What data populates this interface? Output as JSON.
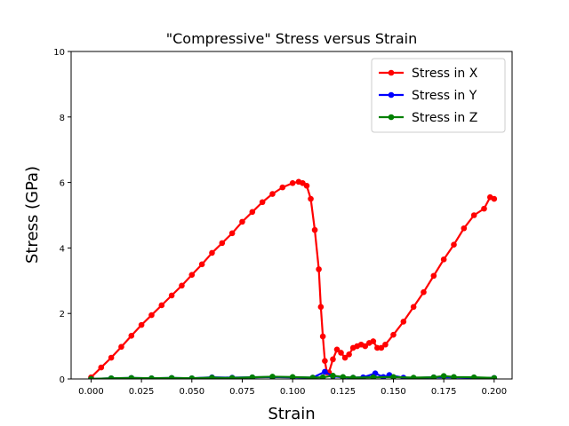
{
  "chart_data": {
    "type": "line",
    "title": "\"Compressive\" Stress versus Strain",
    "xlabel": "Strain",
    "ylabel": "Stress (GPa)",
    "xlim": [
      -0.0099,
      0.2089
    ],
    "ylim": [
      0,
      10
    ],
    "xticks": [
      "0.000",
      "0.025",
      "0.050",
      "0.075",
      "0.100",
      "0.125",
      "0.150",
      "0.175",
      "0.200"
    ],
    "yticks": [
      "0",
      "2",
      "4",
      "6",
      "8",
      "10"
    ],
    "grid": false,
    "legend_position": "top-right",
    "series": [
      {
        "name": "Stress in X",
        "color": "#ff0000",
        "x": [
          0.0,
          0.005,
          0.01,
          0.015,
          0.02,
          0.025,
          0.03,
          0.035,
          0.04,
          0.045,
          0.05,
          0.055,
          0.06,
          0.065,
          0.07,
          0.075,
          0.08,
          0.085,
          0.09,
          0.095,
          0.1,
          0.103,
          0.105,
          0.107,
          0.109,
          0.111,
          0.113,
          0.114,
          0.115,
          0.116,
          0.117,
          0.118,
          0.12,
          0.122,
          0.124,
          0.126,
          0.128,
          0.13,
          0.132,
          0.134,
          0.136,
          0.138,
          0.14,
          0.142,
          0.144,
          0.146,
          0.15,
          0.155,
          0.16,
          0.165,
          0.17,
          0.175,
          0.18,
          0.185,
          0.19,
          0.195,
          0.198,
          0.2
        ],
        "y": [
          0.05,
          0.35,
          0.65,
          0.98,
          1.32,
          1.65,
          1.95,
          2.25,
          2.55,
          2.85,
          3.18,
          3.5,
          3.85,
          4.15,
          4.45,
          4.8,
          5.1,
          5.4,
          5.65,
          5.85,
          5.98,
          6.02,
          5.98,
          5.9,
          5.5,
          4.55,
          3.35,
          2.2,
          1.3,
          0.55,
          0.2,
          0.2,
          0.6,
          0.9,
          0.8,
          0.65,
          0.75,
          0.95,
          1.0,
          1.05,
          1.0,
          1.1,
          1.15,
          0.95,
          0.95,
          1.05,
          1.35,
          1.75,
          2.2,
          2.65,
          3.15,
          3.65,
          4.1,
          4.6,
          5.0,
          5.2,
          5.55,
          5.5
        ]
      },
      {
        "name": "Stress in Y",
        "color": "#0000ff",
        "x": [
          0.0,
          0.01,
          0.02,
          0.03,
          0.04,
          0.05,
          0.06,
          0.07,
          0.08,
          0.09,
          0.1,
          0.11,
          0.116,
          0.12,
          0.125,
          0.13,
          0.135,
          0.141,
          0.145,
          0.148,
          0.155,
          0.16,
          0.17,
          0.18,
          0.19,
          0.2
        ],
        "y": [
          0.0,
          0.02,
          0.03,
          0.02,
          0.03,
          0.02,
          0.05,
          0.04,
          0.05,
          0.06,
          0.05,
          0.04,
          0.22,
          0.08,
          0.05,
          0.04,
          0.05,
          0.17,
          0.06,
          0.12,
          0.04,
          0.03,
          0.05,
          0.05,
          0.04,
          0.03
        ]
      },
      {
        "name": "Stress in Z",
        "color": "#008000",
        "x": [
          0.0,
          0.01,
          0.02,
          0.03,
          0.04,
          0.05,
          0.06,
          0.07,
          0.08,
          0.09,
          0.1,
          0.11,
          0.115,
          0.12,
          0.125,
          0.13,
          0.14,
          0.15,
          0.16,
          0.17,
          0.175,
          0.18,
          0.19,
          0.2
        ],
        "y": [
          0.0,
          0.02,
          0.03,
          0.02,
          0.03,
          0.02,
          0.04,
          0.03,
          0.05,
          0.07,
          0.06,
          0.04,
          0.05,
          0.1,
          0.06,
          0.04,
          0.05,
          0.06,
          0.04,
          0.05,
          0.09,
          0.06,
          0.05,
          0.03
        ]
      }
    ]
  }
}
